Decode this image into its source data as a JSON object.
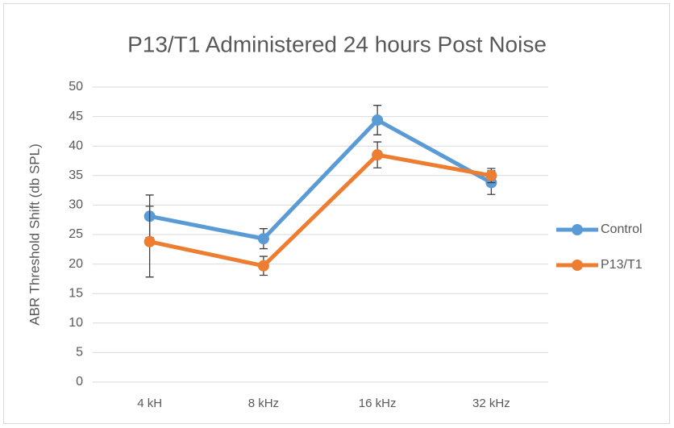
{
  "chart_data": {
    "type": "line",
    "title": "P13/T1 Administered 24 hours Post Noise",
    "y_label": "ABR Threshold Shift (db SPL)",
    "categories": [
      "4 kH",
      "8 kHz",
      "16 kHz",
      "32 kHz"
    ],
    "series": [
      {
        "name": "Control",
        "color": "#5b9bd5",
        "values": [
          28.1,
          24.3,
          44.4,
          33.8
        ],
        "errors": [
          3.6,
          1.7,
          2.5,
          2.0
        ]
      },
      {
        "name": "P13/T1",
        "color": "#ed7d31",
        "values": [
          23.8,
          19.7,
          38.5,
          35.0
        ],
        "errors": [
          6.0,
          1.6,
          2.2,
          1.2
        ]
      }
    ],
    "ylim": [
      0,
      50
    ],
    "yticks": [
      0,
      5,
      10,
      15,
      20,
      25,
      30,
      35,
      40,
      45,
      50
    ],
    "grid": true,
    "legend": "right"
  }
}
